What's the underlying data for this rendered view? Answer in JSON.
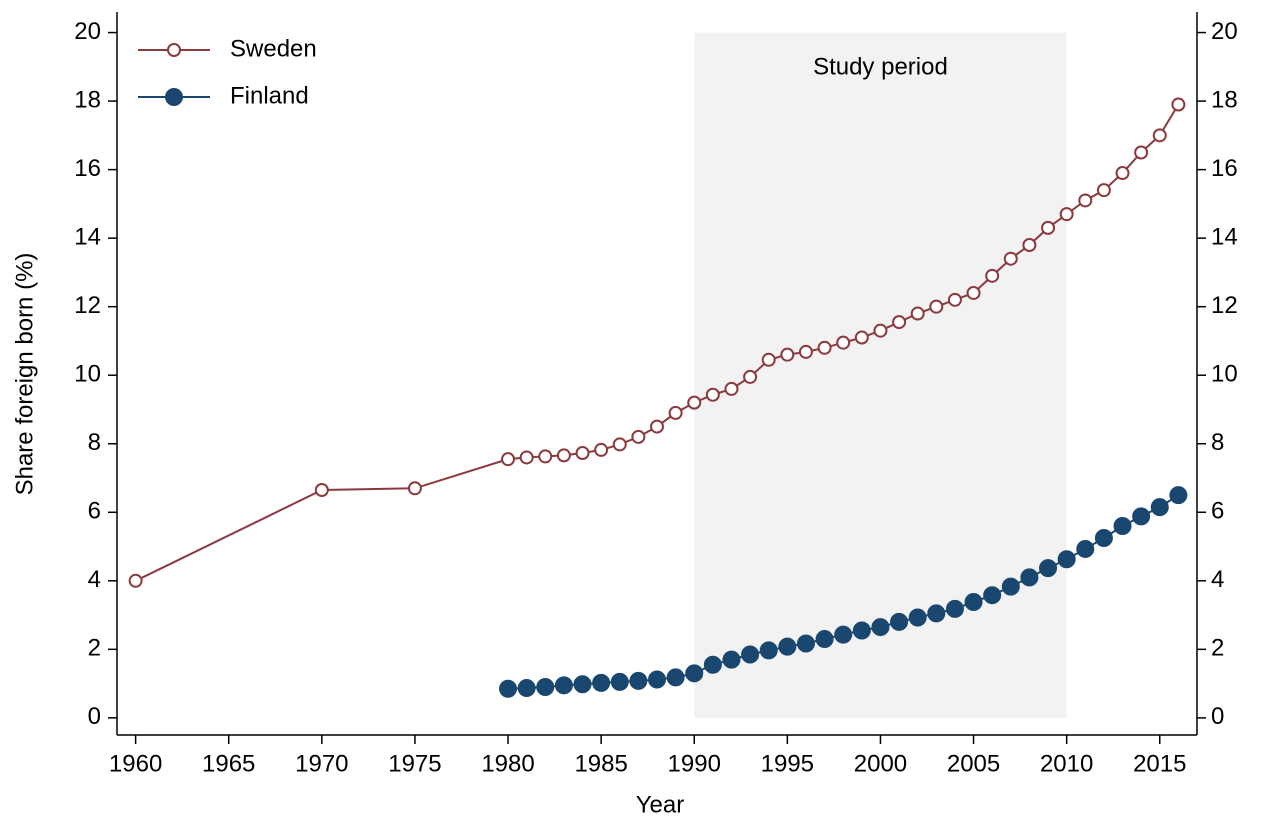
{
  "chart_data": {
    "type": "line",
    "xlabel": "Year",
    "ylabel": "Share foreign born (%)",
    "xlim": [
      1959,
      2017
    ],
    "ylim": [
      -0.5,
      20.6
    ],
    "y2lim": [
      -0.5,
      20.6
    ],
    "xticks": [
      1960,
      1965,
      1970,
      1975,
      1980,
      1985,
      1990,
      1995,
      2000,
      2005,
      2010,
      2015
    ],
    "yticks": [
      0,
      2,
      4,
      6,
      8,
      10,
      12,
      14,
      16,
      18,
      20
    ],
    "y2ticks": [
      0,
      2,
      4,
      6,
      8,
      10,
      12,
      14,
      16,
      18,
      20
    ],
    "grid": false,
    "legend": "top-left",
    "shaded_region": {
      "label": "Study period",
      "x": [
        1990,
        2010
      ],
      "y": [
        0,
        20
      ],
      "color": "#f2f2f2"
    },
    "series": [
      {
        "name": "Sweden",
        "color": "#8b3a3e",
        "marker": "hollow",
        "x": [
          1960,
          1970,
          1975,
          1980,
          1981,
          1982,
          1983,
          1984,
          1985,
          1986,
          1987,
          1988,
          1989,
          1990,
          1991,
          1992,
          1993,
          1994,
          1995,
          1996,
          1997,
          1998,
          1999,
          2000,
          2001,
          2002,
          2003,
          2004,
          2005,
          2006,
          2007,
          2008,
          2009,
          2010,
          2011,
          2012,
          2013,
          2014,
          2015,
          2016
        ],
        "values": [
          4,
          6.65,
          6.7,
          7.55,
          7.6,
          7.63,
          7.66,
          7.73,
          7.82,
          7.98,
          8.2,
          8.5,
          8.9,
          9.2,
          9.43,
          9.6,
          9.95,
          10.45,
          10.6,
          10.68,
          10.8,
          10.95,
          11.1,
          11.3,
          11.55,
          11.8,
          12.0,
          12.2,
          12.4,
          12.9,
          13.4,
          13.8,
          14.3,
          14.7,
          15.1,
          15.4,
          15.9,
          16.5,
          17.0,
          17.9
        ]
      },
      {
        "name": "Finland",
        "color": "#1a476f",
        "marker": "filled",
        "x": [
          1980,
          1981,
          1982,
          1983,
          1984,
          1985,
          1986,
          1987,
          1988,
          1989,
          1990,
          1991,
          1992,
          1993,
          1994,
          1995,
          1996,
          1997,
          1998,
          1999,
          2000,
          2001,
          2002,
          2003,
          2004,
          2005,
          2006,
          2007,
          2008,
          2009,
          2010,
          2011,
          2012,
          2013,
          2014,
          2015,
          2016
        ],
        "values": [
          0.85,
          0.87,
          0.9,
          0.95,
          0.98,
          1.02,
          1.05,
          1.08,
          1.12,
          1.18,
          1.3,
          1.55,
          1.7,
          1.85,
          1.97,
          2.08,
          2.17,
          2.3,
          2.43,
          2.55,
          2.65,
          2.8,
          2.93,
          3.05,
          3.18,
          3.38,
          3.58,
          3.83,
          4.1,
          4.37,
          4.63,
          4.93,
          5.25,
          5.6,
          5.88,
          6.15,
          6.5
        ]
      }
    ]
  }
}
